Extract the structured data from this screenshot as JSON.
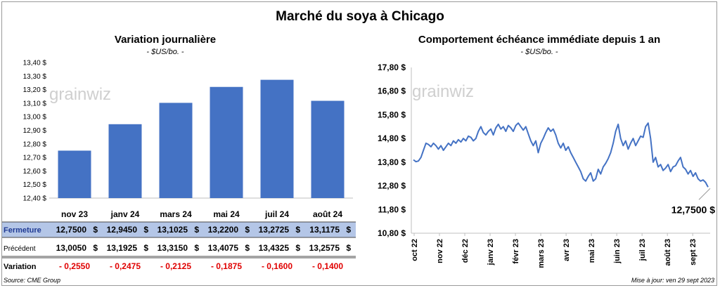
{
  "title": "Marché du soya à Chicago",
  "watermark": "grainwiz",
  "colors": {
    "bar": "#4472c4",
    "line": "#4472c4",
    "negative": "#e00000",
    "row_highlight": "#b4c6e7",
    "grid": "#d9d9d9"
  },
  "chart_data": [
    {
      "type": "bar",
      "title": "Variation  journalière",
      "subtitle": "- $US/bo. -",
      "categories": [
        "nov 23",
        "janv 24",
        "mars 24",
        "mai 24",
        "juil 24",
        "août 24"
      ],
      "values": [
        12.75,
        12.945,
        13.1025,
        13.22,
        13.2725,
        13.1175
      ],
      "ylim": [
        12.4,
        13.4
      ],
      "yticks": [
        "12,40 $",
        "12,50 $",
        "12,60 $",
        "12,70 $",
        "12,80 $",
        "12,90 $",
        "13,00 $",
        "13,10 $",
        "13,20 $",
        "13,30 $",
        "13,40 $"
      ],
      "grid": false
    },
    {
      "type": "line",
      "title": "Comportement  échéance immédiate depuis 1 an",
      "subtitle": "- $US/bo. -",
      "xlabels": [
        "oct 22",
        "nov 22",
        "déc 22",
        "janv 23",
        "févr 23",
        "mars 23",
        "avr 23",
        "mai 23",
        "juin 23",
        "juil 23",
        "août 23",
        "sept 23"
      ],
      "yticks": [
        "10,80 $",
        "11,80 $",
        "12,80 $",
        "13,80 $",
        "14,80 $",
        "15,80 $",
        "16,80 $",
        "17,80 $"
      ],
      "ylim": [
        10.8,
        17.8
      ],
      "last_value_label": "12,7500 $",
      "grid": false,
      "y": [
        13.9,
        13.82,
        13.85,
        14.0,
        14.3,
        14.6,
        14.55,
        14.45,
        14.6,
        14.5,
        14.35,
        14.5,
        14.3,
        14.45,
        14.6,
        14.5,
        14.7,
        14.6,
        14.75,
        14.65,
        14.8,
        14.7,
        14.9,
        14.85,
        14.7,
        14.8,
        15.1,
        15.3,
        15.05,
        14.95,
        15.1,
        15.2,
        14.95,
        15.25,
        15.4,
        15.2,
        15.3,
        15.1,
        15.35,
        15.25,
        15.1,
        15.35,
        15.45,
        15.3,
        15.15,
        15.3,
        15.0,
        14.7,
        14.5,
        14.7,
        14.2,
        14.6,
        14.8,
        15.05,
        15.25,
        15.1,
        15.2,
        14.95,
        14.6,
        14.4,
        14.6,
        14.3,
        14.45,
        14.2,
        14.0,
        13.8,
        13.6,
        13.4,
        13.1,
        13.0,
        13.2,
        13.35,
        13.0,
        13.1,
        13.5,
        13.3,
        13.6,
        13.75,
        13.95,
        14.2,
        14.6,
        15.1,
        15.4,
        14.8,
        14.5,
        14.7,
        14.35,
        14.6,
        14.8,
        14.5,
        14.7,
        14.9,
        14.85,
        15.3,
        15.45,
        14.8,
        13.8,
        14.0,
        13.6,
        13.7,
        13.45,
        13.55,
        13.7,
        13.4,
        13.6,
        13.65,
        13.85,
        14.0,
        13.6,
        13.5,
        13.3,
        13.45,
        13.2,
        13.35,
        13.1,
        13.0,
        13.05,
        12.95,
        12.75
      ]
    }
  ],
  "table": {
    "rows": [
      {
        "label": "Fermeture",
        "values": [
          "12,7500",
          "12,9450",
          "13,1025",
          "13,2200",
          "13,2725",
          "13,1175"
        ],
        "unit": "$"
      },
      {
        "label": "Précédent",
        "values": [
          "13,0050",
          "13,1925",
          "13,3150",
          "13,4075",
          "13,4325",
          "13,2575"
        ],
        "unit": "$"
      },
      {
        "label": "Variation",
        "values": [
          "- 0,2550",
          "- 0,2475",
          "- 0,2125",
          "- 0,1875",
          "- 0,1600",
          "- 0,1400"
        ],
        "unit": ""
      }
    ]
  },
  "footer": {
    "source": "Source: CME Group",
    "updated": "Mise à jour: ven 29 sept 2023"
  }
}
